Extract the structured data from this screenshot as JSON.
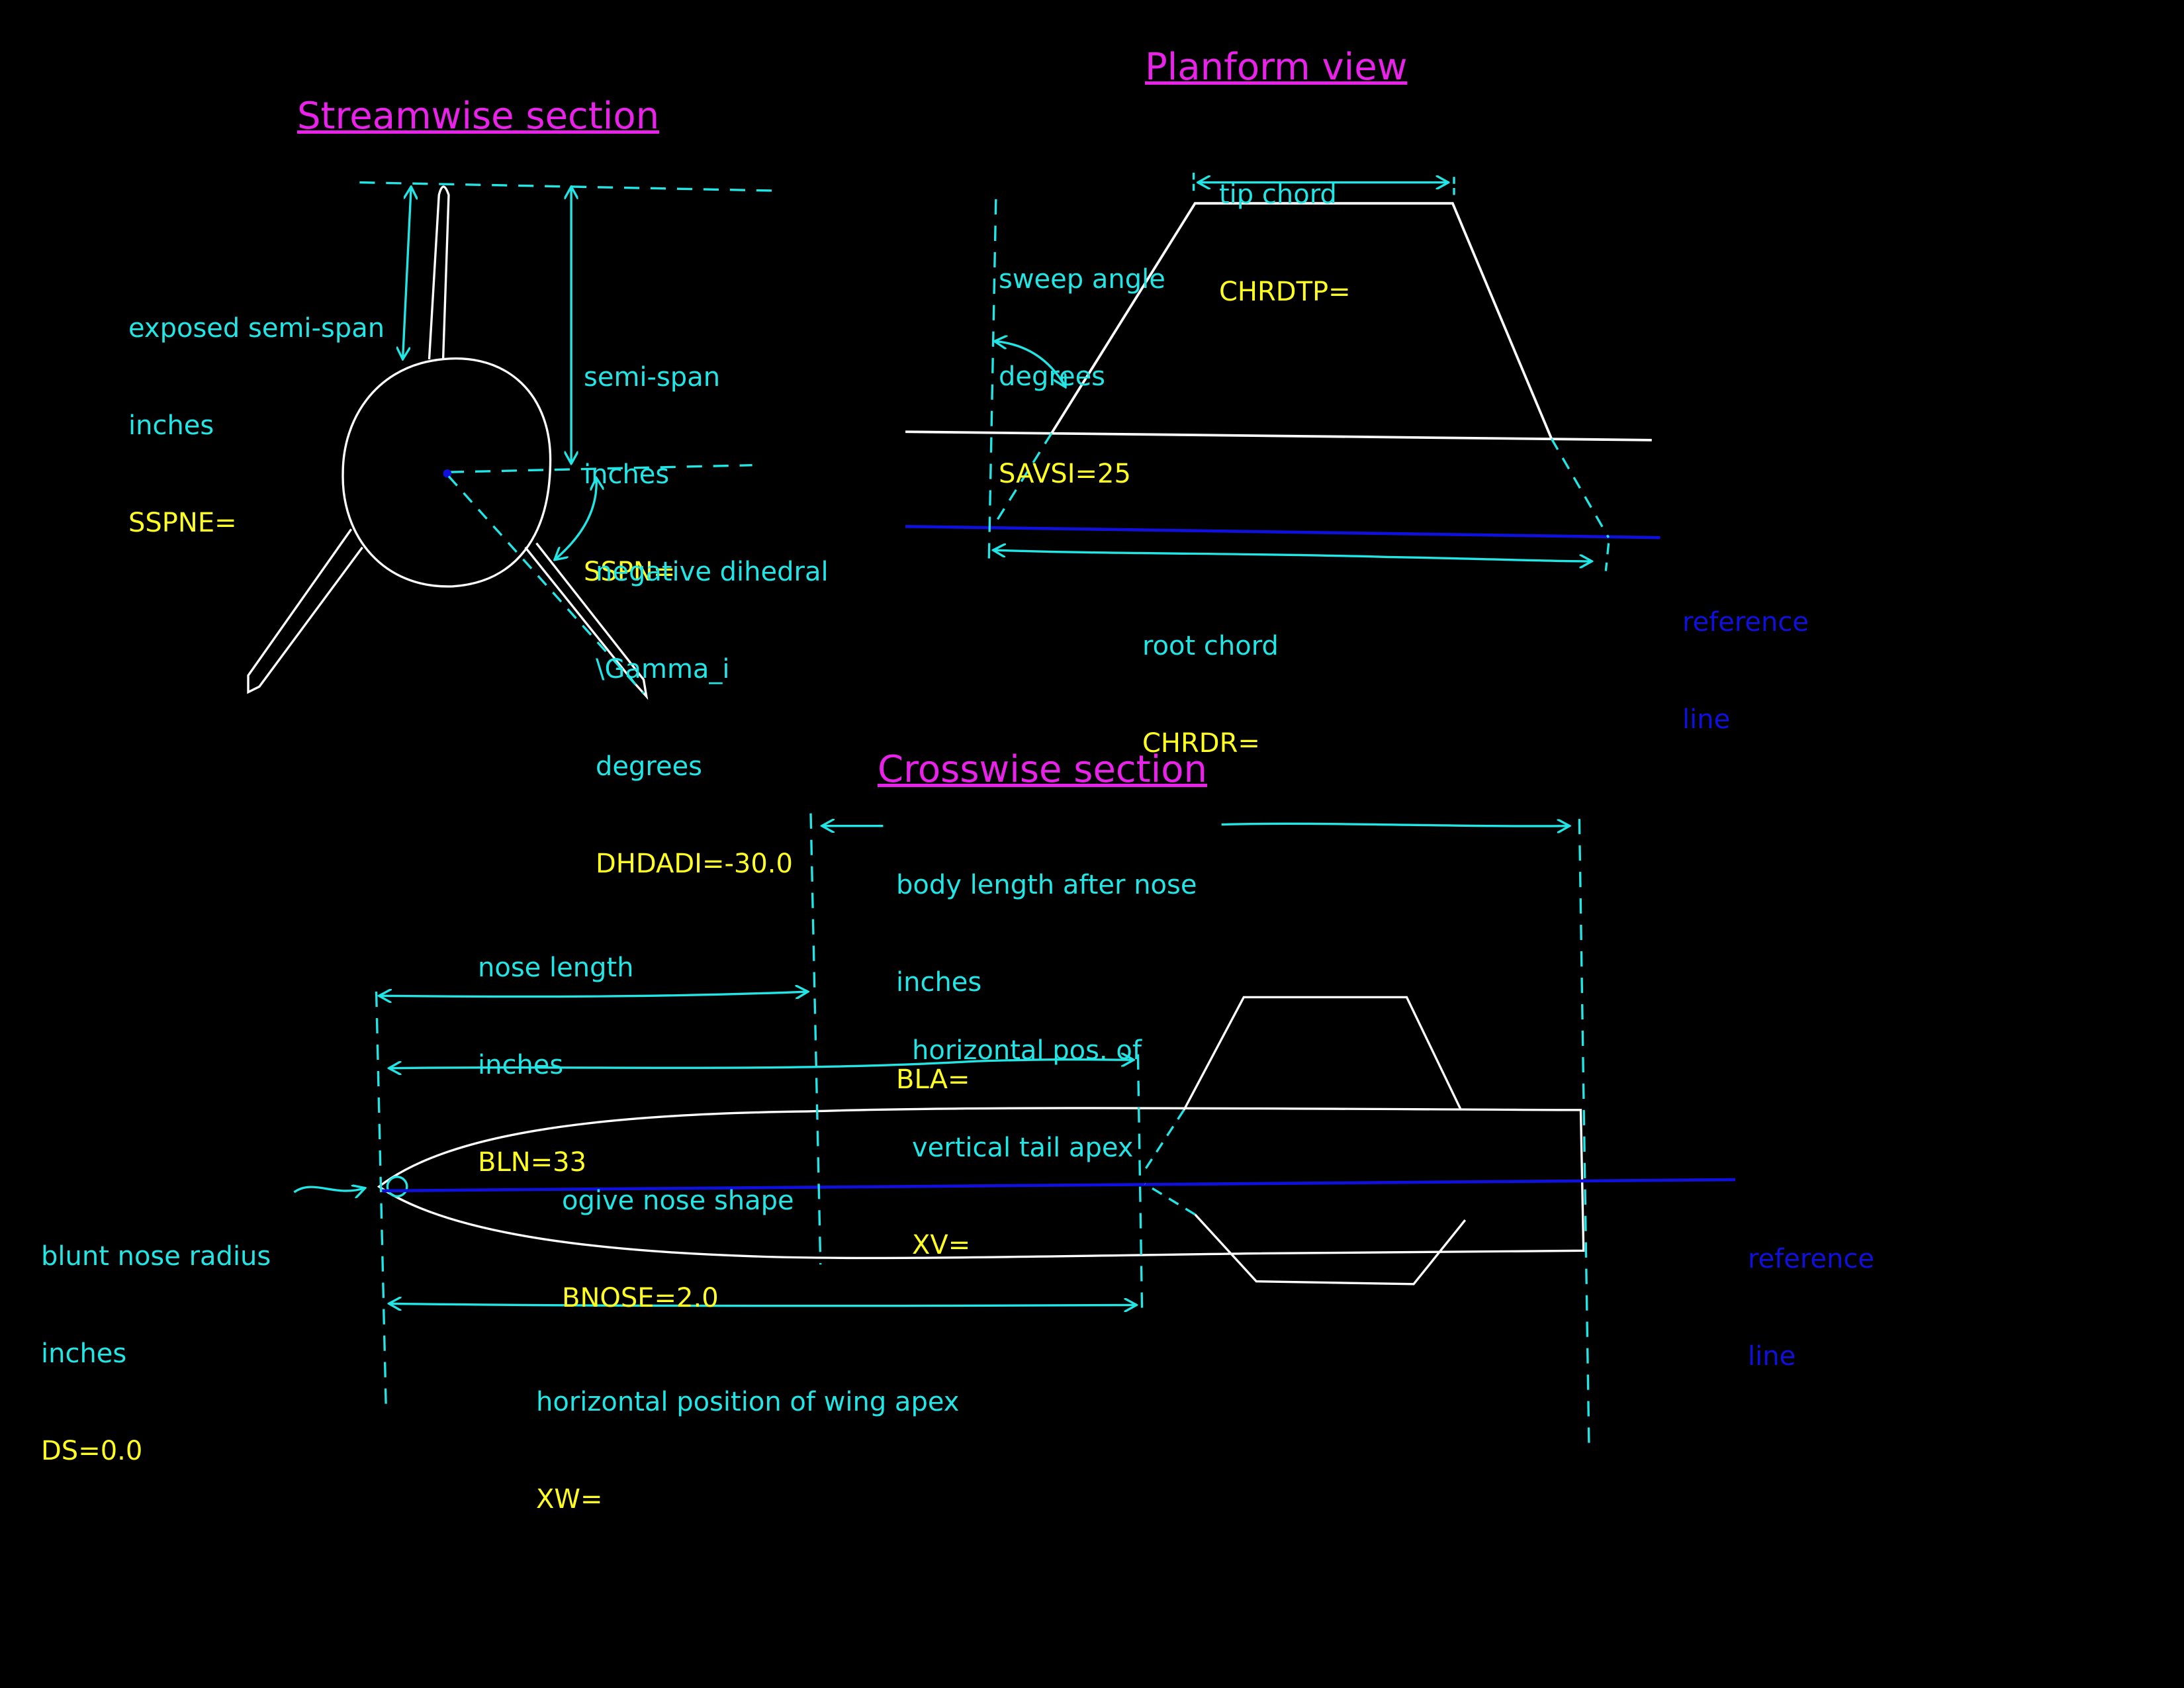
{
  "colors": {
    "background": "#000000",
    "outline": "#ffffff",
    "dimension": "#22e5e5",
    "value": "#ffff22",
    "heading": "#e822e8",
    "reference": "#1010dd"
  },
  "streamwise": {
    "title": "Streamwise section",
    "exposed_semispan": {
      "label1": "exposed semi-span",
      "label2": "inches",
      "value": "SSPNE="
    },
    "semispan": {
      "label1": "semi-span",
      "label2": "inches",
      "value": "SSPN="
    },
    "dihedral": {
      "label1": "negative dihedral",
      "label2": "\\Gamma_i",
      "label3": "degrees",
      "value": "DHDADI=-30.0"
    }
  },
  "planform": {
    "title": "Planform view",
    "tip_chord": {
      "label1": "tip chord",
      "value": "CHRDTP="
    },
    "sweep": {
      "label1": "sweep angle",
      "label2": "degrees",
      "value": "SAVSI=25"
    },
    "root_chord": {
      "label1": "root chord",
      "value": "CHRDR="
    },
    "reference": {
      "line1": "reference",
      "line2": "line"
    }
  },
  "crosswise": {
    "title": "Crosswise section",
    "body_after_nose": {
      "label1": "body length after nose",
      "label2": "inches",
      "value": "BLA="
    },
    "nose_length": {
      "label1": "nose length",
      "label2": "inches",
      "value": "BLN=33"
    },
    "vertical_tail": {
      "label1": "horizontal pos. of",
      "label2": "vertical tail apex",
      "value": "XV="
    },
    "ogive": {
      "label1": "ogive nose shape",
      "value": "BNOSE=2.0"
    },
    "blunt_nose": {
      "label1": "blunt nose radius",
      "label2": "inches",
      "value": "DS=0.0"
    },
    "wing_apex": {
      "label1": "horizontal position of wing apex",
      "value": "XW="
    },
    "reference": {
      "line1": "reference",
      "line2": "line"
    }
  }
}
